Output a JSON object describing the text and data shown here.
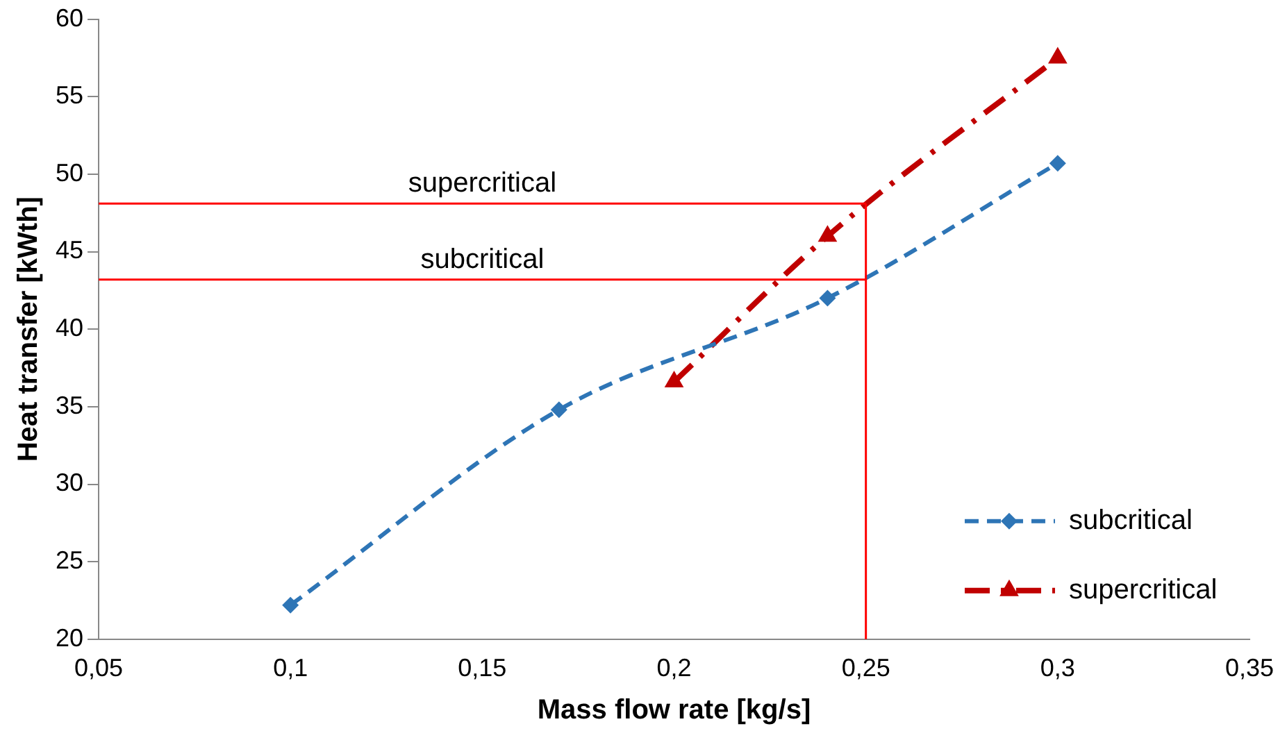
{
  "chart_data": {
    "type": "line",
    "xlabel": "Mass flow rate [kg/s]",
    "ylabel": "Heat transfer [kWth]",
    "xlim": [
      0.05,
      0.35
    ],
    "xticks": [
      {
        "value": 0.05,
        "label": "0,05"
      },
      {
        "value": 0.1,
        "label": "0,1"
      },
      {
        "value": 0.15,
        "label": "0,15"
      },
      {
        "value": 0.2,
        "label": "0,2"
      },
      {
        "value": 0.25,
        "label": "0,25"
      },
      {
        "value": 0.3,
        "label": "0,3"
      },
      {
        "value": 0.35,
        "label": "0,35"
      }
    ],
    "ylim": [
      20,
      60
    ],
    "yticks": [
      20,
      25,
      30,
      35,
      40,
      45,
      50,
      55,
      60
    ],
    "grid": false,
    "legend": "bottom right",
    "series": [
      {
        "name": "subcritical",
        "color": "#2e75b6",
        "x": [
          0.1,
          0.17,
          0.24,
          0.3
        ],
        "values": [
          22.2,
          34.8,
          42,
          50.7
        ],
        "marker": "diamond",
        "line_style": "dashed"
      },
      {
        "name": "supercritical",
        "color": "#c00000",
        "x": [
          0.2,
          0.24,
          0.3
        ],
        "values": [
          36.6,
          46,
          57.5
        ],
        "marker": "triangle",
        "line_style": "dashdot"
      }
    ],
    "ref_lines": [
      {
        "axis": "y",
        "value": 48.1,
        "label": "supercritical",
        "color": "#ff0000"
      },
      {
        "axis": "y",
        "value": 43.2,
        "label": "subcritical",
        "color": "#ff0000"
      },
      {
        "axis": "x",
        "value": 0.25,
        "color": "#ff0000"
      }
    ]
  }
}
